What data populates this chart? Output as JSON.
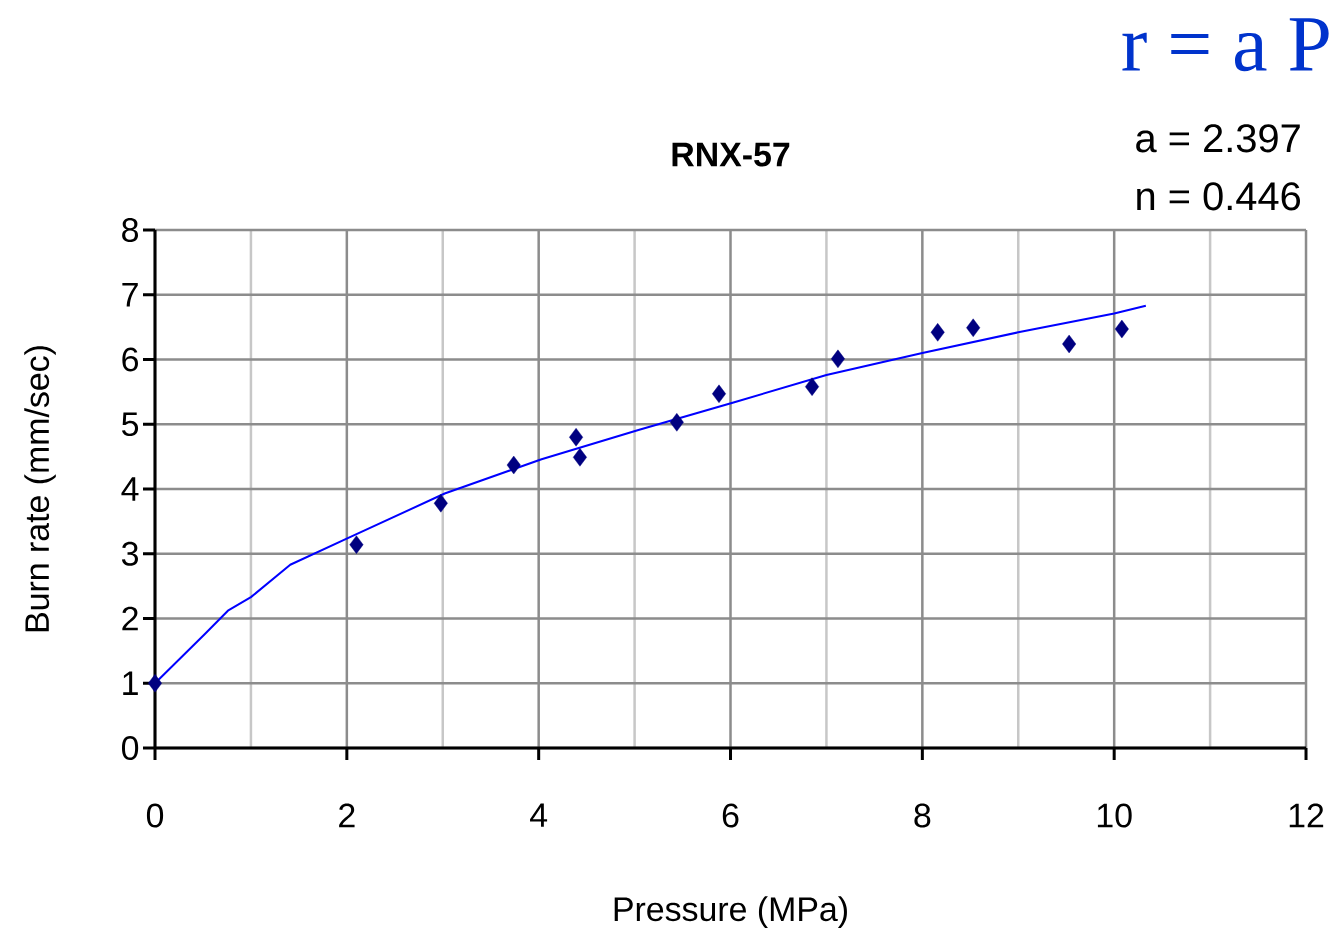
{
  "chart_data": {
    "type": "scatter",
    "title": "RNX-57",
    "xlabel": "Pressure (MPa)",
    "ylabel": "Burn rate (mm/sec)",
    "annotations": [
      "r = a P",
      "a = 2.397",
      "n = 0.446"
    ],
    "xlim": [
      0,
      12
    ],
    "xticks": [
      0,
      2,
      4,
      6,
      8,
      10,
      12
    ],
    "ylim": [
      0,
      8
    ],
    "yticks": [
      0,
      1,
      2,
      3,
      4,
      5,
      6,
      7,
      8
    ],
    "grid": true,
    "marker": "diamond",
    "series": [
      {
        "color": "#000080",
        "x": [
          0,
          2.1,
          2.98,
          3.74,
          4.39,
          4.43,
          5.44,
          5.88,
          6.85,
          7.12,
          8.16,
          8.53,
          9.53,
          10.08
        ],
        "values": [
          1.0,
          3.14,
          3.78,
          4.37,
          4.8,
          4.49,
          5.03,
          5.47,
          5.58,
          6.01,
          6.42,
          6.49,
          6.24,
          6.47
        ]
      },
      {
        "type": "line",
        "marker": "none",
        "color": "#0000ff",
        "x": [
          0,
          0.52,
          0.76,
          1.0,
          1.41,
          2.01,
          3.02,
          4.03,
          5.04,
          6.04,
          7.0,
          8.0,
          9.0,
          10.0,
          10.33
        ],
        "values": [
          1.0,
          1.76,
          2.12,
          2.33,
          2.83,
          3.24,
          3.93,
          4.46,
          4.91,
          5.34,
          5.76,
          6.1,
          6.42,
          6.71,
          6.83
        ]
      }
    ]
  }
}
